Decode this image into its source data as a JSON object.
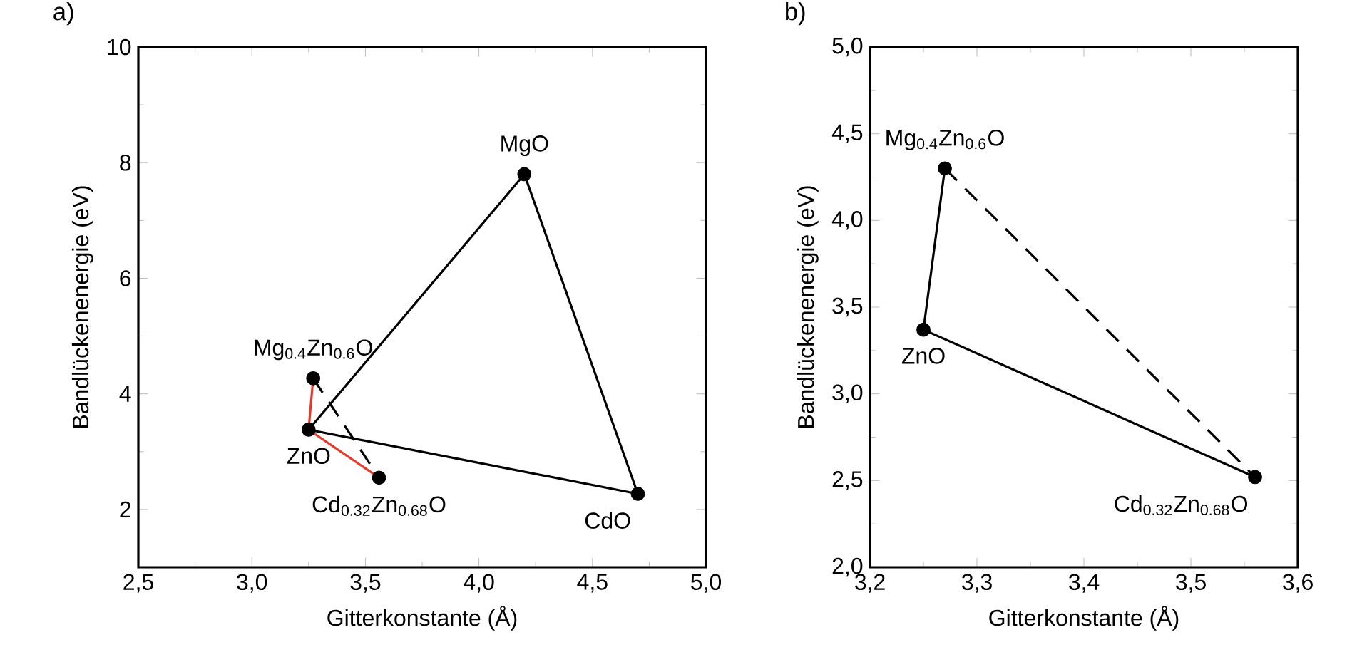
{
  "chart_data": [
    {
      "type": "scatter",
      "title": "a)",
      "xlabel": "Gitterkonstante (Å)",
      "ylabel": "Bandlückenenergie (eV)",
      "xlim": [
        2.5,
        5.0
      ],
      "ylim": [
        1,
        10
      ],
      "xticks": [
        {
          "value": 2.5,
          "label": "2,5"
        },
        {
          "value": 3.0,
          "label": "3,0"
        },
        {
          "value": 3.5,
          "label": "3,5"
        },
        {
          "value": 4.0,
          "label": "4,0"
        },
        {
          "value": 4.5,
          "label": "4,5"
        },
        {
          "value": 5.0,
          "label": "5,0"
        }
      ],
      "yticks": [
        2,
        4,
        6,
        8,
        10
      ],
      "series": [
        {
          "type": "line",
          "color": "#000000",
          "line_style": "dashed",
          "marker": "none",
          "x": [
            3.27,
            3.56
          ],
          "values": [
            4.27,
            2.55
          ]
        },
        {
          "type": "line",
          "color": "#e8392b",
          "line_style": "solid",
          "marker": "none",
          "x": [
            3.27,
            3.25,
            3.56
          ],
          "values": [
            4.27,
            3.38,
            2.55
          ]
        },
        {
          "type": "line",
          "color": "#000000",
          "line_style": "solid",
          "marker": "none",
          "x": [
            3.25,
            4.2,
            4.7
          ],
          "values": [
            3.38,
            7.8,
            2.27
          ]
        },
        {
          "type": "line",
          "color": "#000000",
          "line_style": "solid",
          "marker": "none",
          "x": [
            3.25,
            4.7
          ],
          "values": [
            3.38,
            2.27
          ]
        },
        {
          "color": "#000000",
          "marker": "circle",
          "x": [
            4.2,
            3.27,
            3.25,
            3.56,
            4.7
          ],
          "values": [
            7.8,
            4.27,
            3.38,
            2.55,
            2.27
          ]
        }
      ],
      "annotations": [
        {
          "text": "MgO",
          "x": 4.2,
          "y": 7.8
        },
        {
          "text": "Mg$_{0.4}$Zn$_{0.6}$O",
          "x": 3.27,
          "y": 4.27
        },
        {
          "text": "ZnO",
          "x": 3.25,
          "y": 3.38
        },
        {
          "text": "Cd$_{0.32}$Zn$_{0.68}$O",
          "x": 3.56,
          "y": 2.55
        },
        {
          "text": "CdO",
          "x": 4.7,
          "y": 2.27
        }
      ]
    },
    {
      "type": "scatter",
      "title": "b)",
      "xlabel": "Gitterkonstante (Å)",
      "ylabel": "Bandlückenenergie (eV)",
      "xlim": [
        3.2,
        3.6
      ],
      "ylim": [
        2.0,
        5.0
      ],
      "xticks": [
        {
          "value": 3.2,
          "label": "3,2"
        },
        {
          "value": 3.3,
          "label": "3,3"
        },
        {
          "value": 3.4,
          "label": "3,4"
        },
        {
          "value": 3.5,
          "label": "3,5"
        },
        {
          "value": 3.6,
          "label": "3,6"
        }
      ],
      "yticks": [
        {
          "value": 2.0,
          "label": "2,0"
        },
        {
          "value": 2.5,
          "label": "2,5"
        },
        {
          "value": 3.0,
          "label": "3,0"
        },
        {
          "value": 3.5,
          "label": "3,5"
        },
        {
          "value": 4.0,
          "label": "4,0"
        },
        {
          "value": 4.5,
          "label": "4,5"
        },
        {
          "value": 5.0,
          "label": "5,0"
        }
      ],
      "series": [
        {
          "type": "line",
          "color": "#000000",
          "line_style": "solid",
          "marker": "none",
          "x": [
            3.27,
            3.25,
            3.56
          ],
          "values": [
            4.3,
            3.37,
            2.52
          ]
        },
        {
          "type": "line",
          "color": "#000000",
          "line_style": "dashed",
          "marker": "none",
          "x": [
            3.27,
            3.56
          ],
          "values": [
            4.3,
            2.52
          ]
        },
        {
          "color": "#000000",
          "marker": "circle",
          "x": [
            3.27,
            3.25,
            3.56
          ],
          "values": [
            4.3,
            3.37,
            2.52
          ]
        }
      ],
      "annotations": [
        {
          "text": "Mg$_{0.4}$Zn$_{0.6}$O",
          "x": 3.27,
          "y": 4.3
        },
        {
          "text": "ZnO",
          "x": 3.25,
          "y": 3.37
        },
        {
          "text": "Cd$_{0.32}$Zn$_{0.68}$O",
          "x": 3.56,
          "y": 2.52
        }
      ]
    }
  ]
}
